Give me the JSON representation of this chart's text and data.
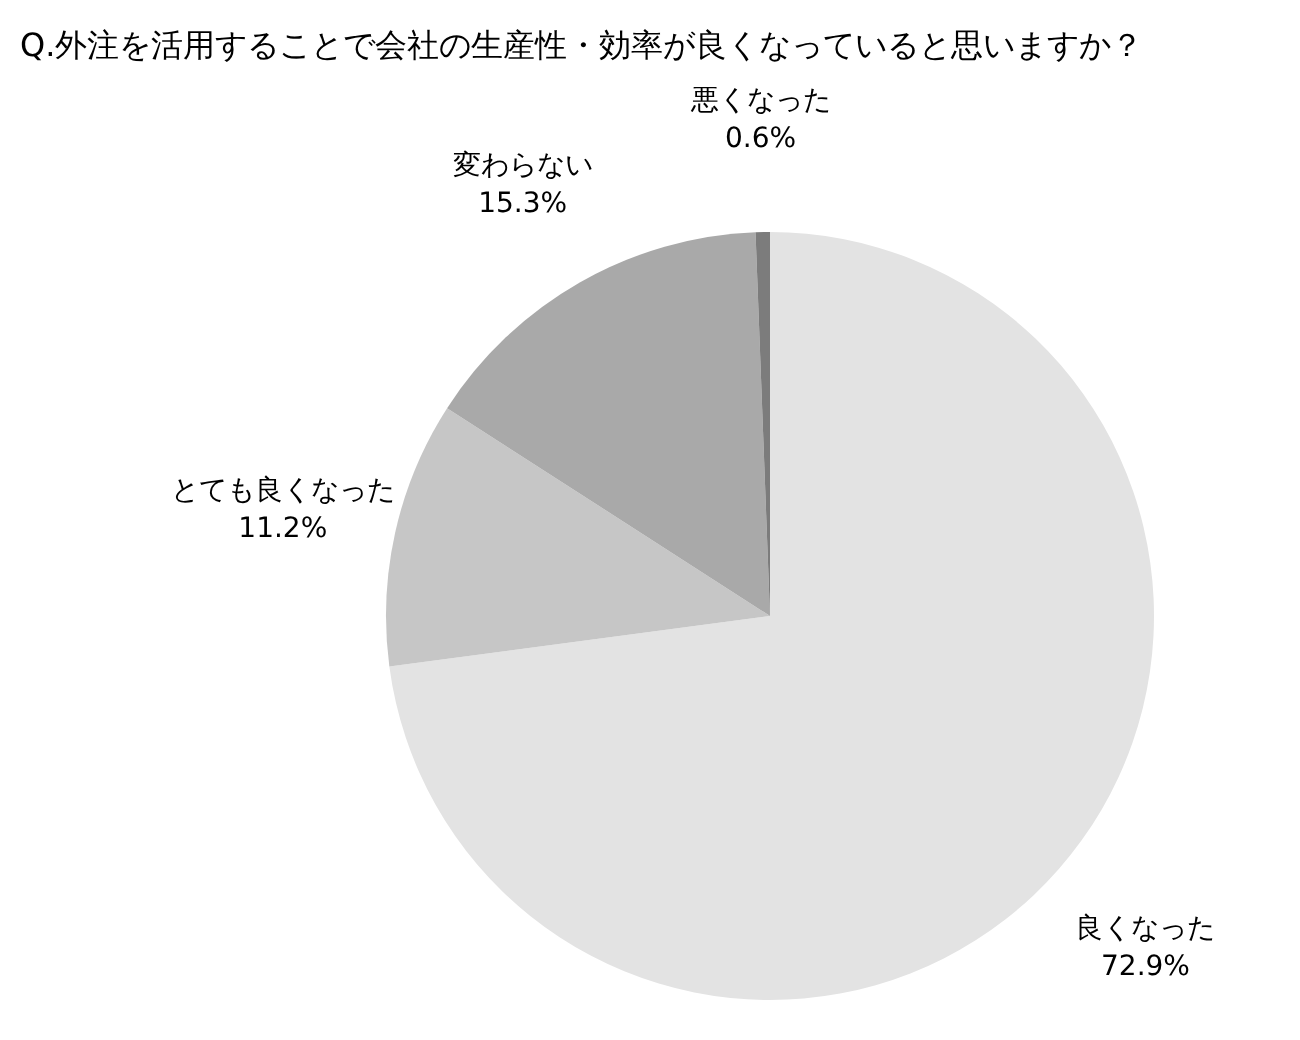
{
  "chart_data": {
    "type": "pie",
    "title": "Q.外注を活用することで会社の生産性・効率が良くなっていると思いますか？",
    "categories": [
      "良くなった",
      "とても良くなった",
      "変わらない",
      "悪くなった"
    ],
    "values": [
      72.9,
      11.2,
      15.3,
      0.6
    ],
    "value_labels": [
      "72.9%",
      "11.2%",
      "15.3%",
      "0.6%"
    ],
    "colors": [
      "#e3e3e3",
      "#c6c6c6",
      "#a9a9a9",
      "#7c7c7c"
    ]
  }
}
